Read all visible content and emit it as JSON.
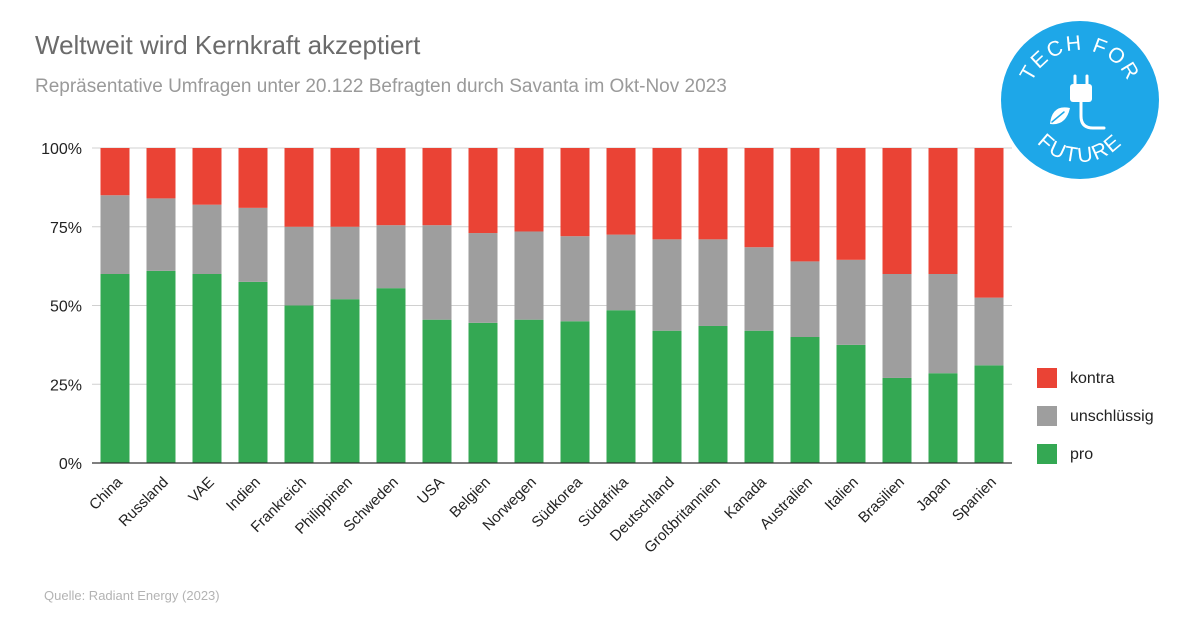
{
  "header": {
    "title": "Weltweit wird Kernkraft akzeptiert",
    "subtitle": "Repräsentative Umfragen unter 20.122 Befragten durch Savanta im Okt-Nov 2023"
  },
  "footer": {
    "source": "Quelle:  Radiant Energy (2023)"
  },
  "logo": {
    "top_text": "TECH FOR",
    "bottom_text": "FUTURE",
    "color": "#1ea7e8",
    "icon": "plug-leaf-icon"
  },
  "chart_data": {
    "type": "bar",
    "stacked": true,
    "categories": [
      "China",
      "Russland",
      "VAE",
      "Indien",
      "Frankreich",
      "Philippinen",
      "Schweden",
      "USA",
      "Belgien",
      "Norwegen",
      "Südkorea",
      "Südafrika",
      "Deutschland",
      "Großbritannien",
      "Kanada",
      "Australien",
      "Italien",
      "Brasilien",
      "Japan",
      "Spanien"
    ],
    "series": [
      {
        "name": "pro",
        "color": "#34a853",
        "values": [
          60,
          61,
          60,
          57.5,
          50,
          52,
          55.5,
          45.5,
          44.5,
          45.5,
          45,
          48.5,
          42,
          43.5,
          42,
          40,
          37.5,
          27,
          28.5,
          31
        ]
      },
      {
        "name": "unschlüssig",
        "color": "#9e9e9e",
        "values": [
          25,
          23,
          22,
          23.5,
          25,
          23,
          20,
          30,
          28.5,
          28,
          27,
          24,
          29,
          27.5,
          26.5,
          24,
          27,
          33,
          31.5,
          21.5
        ]
      },
      {
        "name": "kontra",
        "color": "#ea4335",
        "values": [
          15,
          16,
          18,
          19,
          25,
          25,
          24.5,
          24.5,
          27,
          26.5,
          28,
          27.5,
          29,
          29,
          31.5,
          36,
          35.5,
          40,
          40,
          47.5
        ]
      }
    ],
    "ylim": [
      0,
      100
    ],
    "yticks": [
      "0%",
      "25%",
      "50%",
      "75%",
      "100%"
    ],
    "ytick_values": [
      0,
      25,
      50,
      75,
      100
    ],
    "grid": true,
    "legend": {
      "placement": "right",
      "order": [
        "kontra",
        "unschlüssig",
        "pro"
      ]
    }
  }
}
